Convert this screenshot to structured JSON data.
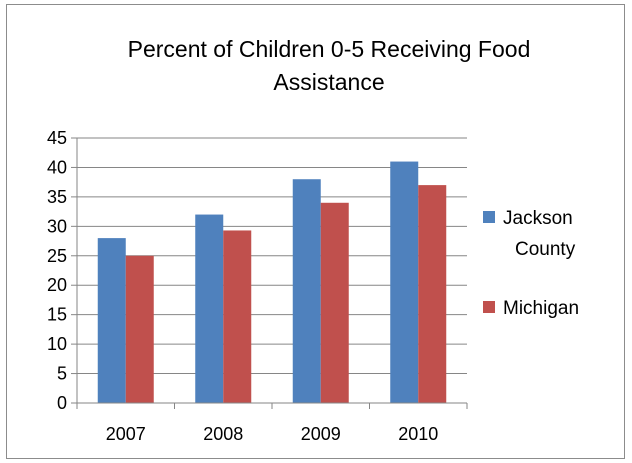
{
  "chart_data": {
    "type": "bar",
    "title_lines": [
      "Percent of Children 0-5 Receiving Food",
      "Assistance"
    ],
    "categories": [
      "2007",
      "2008",
      "2009",
      "2010"
    ],
    "series": [
      {
        "name": "Jackson County",
        "legend_lines": [
          "Jackson",
          "County"
        ],
        "values": [
          28,
          32,
          38,
          41
        ],
        "color": "#4f81bd"
      },
      {
        "name": "Michigan",
        "legend_lines": [
          "Michigan"
        ],
        "values": [
          25,
          29.3,
          34,
          37
        ],
        "color": "#c0504d"
      }
    ],
    "ylim": [
      0,
      45
    ],
    "yticks": [
      "0",
      "5",
      "10",
      "15",
      "20",
      "25",
      "30",
      "35",
      "40",
      "45"
    ],
    "grid": true,
    "legend_position": "right"
  }
}
